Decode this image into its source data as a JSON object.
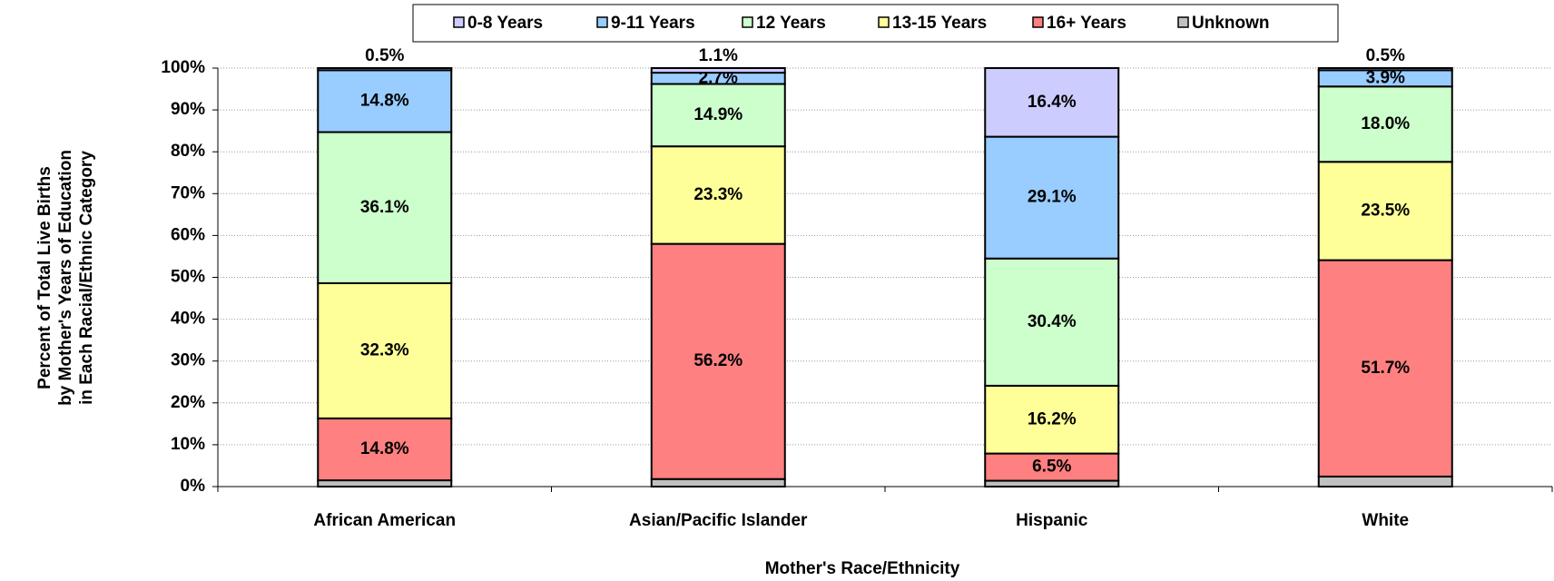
{
  "chart_data": {
    "type": "stacked_bar",
    "categories": [
      "African American",
      "Asian/Pacific Islander",
      "Hispanic",
      "White"
    ],
    "series": [
      {
        "name": "0-8 Years",
        "color": "#ccccff",
        "values": [
          0.5,
          1.1,
          16.4,
          0.5
        ],
        "value_labels": [
          "0.5%",
          "1.1%",
          "16.4%",
          "0.5%"
        ]
      },
      {
        "name": "9-11 Years",
        "color": "#99ccff",
        "values": [
          14.8,
          2.7,
          29.1,
          3.9
        ],
        "value_labels": [
          "14.8%",
          "2.7%",
          "29.1%",
          "3.9%"
        ]
      },
      {
        "name": "12 Years",
        "color": "#ccffcc",
        "values": [
          36.1,
          14.9,
          30.4,
          18.0
        ],
        "value_labels": [
          "36.1%",
          "14.9%",
          "30.4%",
          "18.0%"
        ]
      },
      {
        "name": "13-15 Years",
        "color": "#ffff99",
        "values": [
          32.3,
          23.3,
          16.2,
          23.5
        ],
        "value_labels": [
          "32.3%",
          "23.3%",
          "16.2%",
          "23.5%"
        ]
      },
      {
        "name": "16+ Years",
        "color": "#ff8080",
        "values": [
          14.8,
          56.2,
          6.5,
          51.7
        ],
        "value_labels": [
          "14.8%",
          "56.2%",
          "6.5%",
          "51.7%"
        ]
      },
      {
        "name": "Unknown",
        "color": "#c0c0c0",
        "values": [
          1.5,
          1.8,
          1.4,
          2.4
        ]
      }
    ],
    "xlabel": "Mother's Race/Ethnicity",
    "ylabel": [
      "Percent of Total Live Births",
      "by Mother's Years of Education",
      "in Each Racial/Ethnic Category"
    ],
    "ylim": [
      0,
      100
    ],
    "yticks": [
      {
        "value": 0,
        "label": "0%"
      },
      {
        "value": 10,
        "label": "10%"
      },
      {
        "value": 20,
        "label": "20%"
      },
      {
        "value": 30,
        "label": "30%"
      },
      {
        "value": 40,
        "label": "40%"
      },
      {
        "value": 50,
        "label": "50%"
      },
      {
        "value": 60,
        "label": "60%"
      },
      {
        "value": 70,
        "label": "70%"
      },
      {
        "value": 80,
        "label": "80%"
      },
      {
        "value": 90,
        "label": "90%"
      },
      {
        "value": 100,
        "label": "100%"
      }
    ],
    "grid": true,
    "legend": "top"
  }
}
